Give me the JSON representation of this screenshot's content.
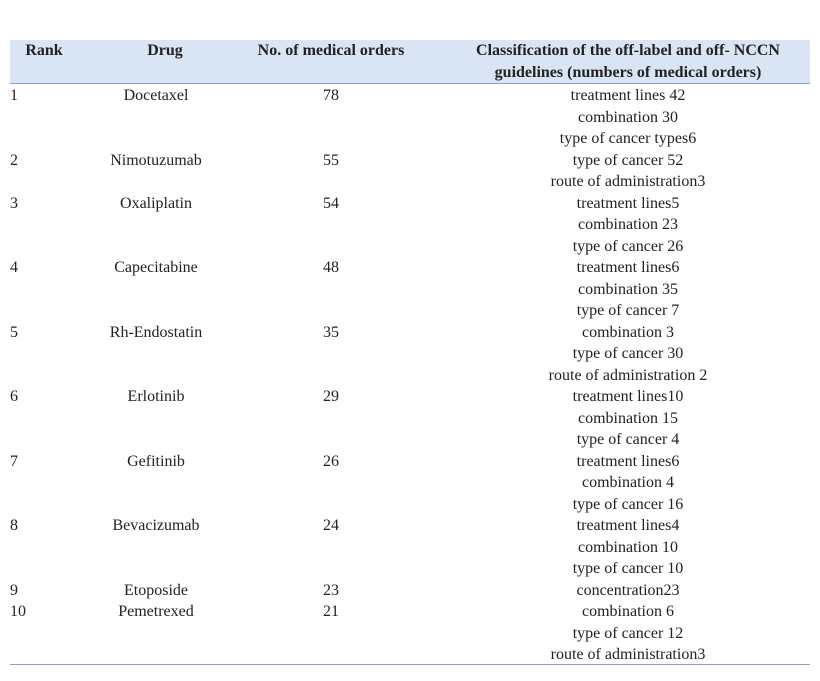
{
  "table": {
    "header": {
      "rank": "Rank",
      "drug": "Drug",
      "orders": "No. of medical orders",
      "classification": [
        "Classification of the off-label and off- NCCN",
        "guidelines (numbers of medical orders)"
      ]
    },
    "rows": [
      {
        "rank": 1,
        "drug": "Docetaxel",
        "orders": 78
      },
      {
        "rank": 2,
        "drug": "Nimotuzumab",
        "orders": 55
      },
      {
        "rank": 3,
        "drug": "Oxaliplatin",
        "orders": 54
      },
      {
        "rank": 4,
        "drug": "Capecitabine",
        "orders": 48
      },
      {
        "rank": 5,
        "drug": "Rh-Endostatin",
        "orders": 35
      },
      {
        "rank": 6,
        "drug": "Erlotinib",
        "orders": 29
      },
      {
        "rank": 7,
        "drug": "Gefitinib",
        "orders": 26
      },
      {
        "rank": 8,
        "drug": "Bevacizumab",
        "orders": 24
      },
      {
        "rank": 9,
        "drug": "Etoposide",
        "orders": 23
      },
      {
        "rank": 10,
        "drug": "Pemetrexed",
        "orders": 21
      }
    ],
    "classification_lines": [
      "treatment lines 42",
      "combination 30",
      "type of cancer types6",
      "type of cancer 52",
      "route of administration3",
      "treatment lines5",
      "combination 23",
      "type of cancer 26",
      "treatment lines6",
      "combination 35",
      "type of cancer 7",
      "combination 3",
      "type of cancer 30",
      "route of administration 2",
      "treatment lines10",
      "combination 15",
      "type of cancer 4",
      "treatment lines6",
      "combination 4",
      "type of cancer 16",
      "treatment lines4",
      "combination 10",
      "type of cancer 10",
      "concentration23",
      "combination 6",
      "type of cancer 12",
      "route of administration3"
    ]
  }
}
